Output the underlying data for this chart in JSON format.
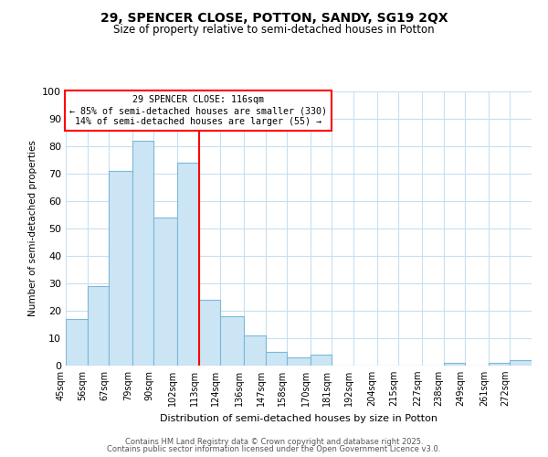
{
  "title": "29, SPENCER CLOSE, POTTON, SANDY, SG19 2QX",
  "subtitle": "Size of property relative to semi-detached houses in Potton",
  "xlabel": "Distribution of semi-detached houses by size in Potton",
  "ylabel": "Number of semi-detached properties",
  "categories": [
    "45sqm",
    "56sqm",
    "67sqm",
    "79sqm",
    "90sqm",
    "102sqm",
    "113sqm",
    "124sqm",
    "136sqm",
    "147sqm",
    "158sqm",
    "170sqm",
    "181sqm",
    "192sqm",
    "204sqm",
    "215sqm",
    "227sqm",
    "238sqm",
    "249sqm",
    "261sqm",
    "272sqm"
  ],
  "values": [
    17,
    29,
    71,
    82,
    54,
    74,
    24,
    18,
    11,
    5,
    3,
    4,
    0,
    0,
    0,
    0,
    0,
    1,
    0,
    1,
    2
  ],
  "bar_color": "#cce5f5",
  "bar_edge_color": "#7ab9d8",
  "pct_smaller": 85,
  "n_smaller": 330,
  "pct_larger": 14,
  "n_larger": 55,
  "ylim": [
    0,
    100
  ],
  "yticks": [
    0,
    10,
    20,
    30,
    40,
    50,
    60,
    70,
    80,
    90,
    100
  ],
  "footer1": "Contains HM Land Registry data © Crown copyright and database right 2025.",
  "footer2": "Contains public sector information licensed under the Open Government Licence v3.0.",
  "bin_edges": [
    45,
    56,
    67,
    79,
    90,
    102,
    113,
    124,
    136,
    147,
    158,
    170,
    181,
    192,
    204,
    215,
    227,
    238,
    249,
    261,
    272,
    283
  ],
  "grid_color": "#c8dff0",
  "line_x_index": 6
}
